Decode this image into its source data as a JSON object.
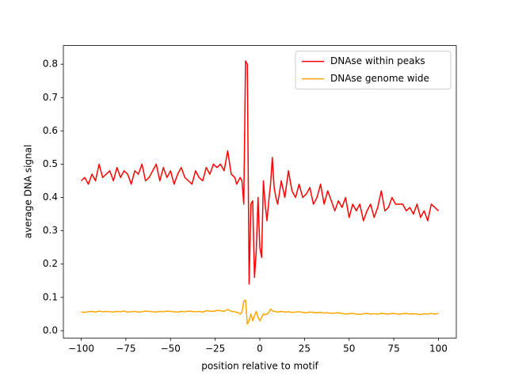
{
  "chart_data": {
    "type": "line",
    "xlabel": "position relative to motif",
    "ylabel": "average DNA signal",
    "x": [
      -100,
      -98,
      -96,
      -94,
      -92,
      -90,
      -88,
      -86,
      -84,
      -82,
      -80,
      -78,
      -76,
      -74,
      -72,
      -70,
      -68,
      -66,
      -64,
      -62,
      -60,
      -58,
      -56,
      -54,
      -52,
      -50,
      -48,
      -46,
      -44,
      -42,
      -40,
      -38,
      -36,
      -34,
      -32,
      -30,
      -28,
      -26,
      -24,
      -22,
      -20,
      -18,
      -16,
      -14,
      -13,
      -12,
      -11,
      -10,
      -9,
      -8,
      -7,
      -6,
      -5,
      -4,
      -3,
      -2,
      -1,
      0,
      1,
      2,
      3,
      4,
      5,
      6,
      7,
      8,
      9,
      10,
      12,
      14,
      16,
      18,
      20,
      22,
      24,
      26,
      28,
      30,
      32,
      34,
      36,
      38,
      40,
      42,
      44,
      46,
      48,
      50,
      52,
      54,
      56,
      58,
      60,
      62,
      64,
      66,
      68,
      70,
      72,
      74,
      76,
      78,
      80,
      82,
      84,
      86,
      88,
      90,
      92,
      94,
      96,
      98,
      100
    ],
    "series": [
      {
        "name": "DNAse within peaks",
        "color": "#ff0000",
        "values": [
          0.45,
          0.46,
          0.44,
          0.47,
          0.45,
          0.5,
          0.46,
          0.47,
          0.48,
          0.45,
          0.49,
          0.46,
          0.48,
          0.47,
          0.44,
          0.48,
          0.47,
          0.5,
          0.45,
          0.46,
          0.48,
          0.5,
          0.45,
          0.49,
          0.46,
          0.48,
          0.44,
          0.47,
          0.49,
          0.46,
          0.45,
          0.44,
          0.48,
          0.46,
          0.45,
          0.49,
          0.47,
          0.5,
          0.49,
          0.5,
          0.48,
          0.54,
          0.47,
          0.46,
          0.44,
          0.45,
          0.46,
          0.45,
          0.38,
          0.81,
          0.8,
          0.14,
          0.38,
          0.39,
          0.16,
          0.24,
          0.4,
          0.25,
          0.22,
          0.45,
          0.38,
          0.33,
          0.39,
          0.44,
          0.52,
          0.43,
          0.4,
          0.38,
          0.45,
          0.4,
          0.48,
          0.42,
          0.4,
          0.44,
          0.4,
          0.41,
          0.43,
          0.38,
          0.4,
          0.44,
          0.38,
          0.42,
          0.39,
          0.36,
          0.39,
          0.37,
          0.4,
          0.34,
          0.38,
          0.36,
          0.38,
          0.33,
          0.36,
          0.38,
          0.34,
          0.37,
          0.42,
          0.36,
          0.37,
          0.4,
          0.38,
          0.38,
          0.38,
          0.36,
          0.37,
          0.35,
          0.38,
          0.34,
          0.36,
          0.33,
          0.38,
          0.37,
          0.36
        ]
      },
      {
        "name": "DNAse genome wide",
        "color": "#ffa500",
        "values": [
          0.056,
          0.055,
          0.057,
          0.058,
          0.056,
          0.059,
          0.057,
          0.058,
          0.057,
          0.056,
          0.058,
          0.057,
          0.059,
          0.056,
          0.057,
          0.058,
          0.056,
          0.057,
          0.059,
          0.058,
          0.057,
          0.056,
          0.058,
          0.057,
          0.059,
          0.058,
          0.057,
          0.056,
          0.058,
          0.057,
          0.059,
          0.058,
          0.057,
          0.058,
          0.056,
          0.06,
          0.059,
          0.058,
          0.061,
          0.06,
          0.058,
          0.064,
          0.058,
          0.057,
          0.055,
          0.054,
          0.05,
          0.056,
          0.088,
          0.092,
          0.02,
          0.03,
          0.05,
          0.03,
          0.045,
          0.058,
          0.04,
          0.03,
          0.04,
          0.05,
          0.048,
          0.05,
          0.055,
          0.065,
          0.06,
          0.058,
          0.057,
          0.056,
          0.058,
          0.056,
          0.057,
          0.055,
          0.056,
          0.057,
          0.055,
          0.054,
          0.056,
          0.055,
          0.054,
          0.055,
          0.053,
          0.054,
          0.052,
          0.053,
          0.054,
          0.052,
          0.05,
          0.051,
          0.052,
          0.05,
          0.049,
          0.051,
          0.052,
          0.05,
          0.051,
          0.05,
          0.052,
          0.051,
          0.05,
          0.052,
          0.051,
          0.05,
          0.051,
          0.052,
          0.05,
          0.051,
          0.05,
          0.049,
          0.051,
          0.05,
          0.052,
          0.05,
          0.052
        ]
      }
    ],
    "xlim": [
      -110,
      110
    ],
    "xticks": [
      {
        "value": -100,
        "label": "−100"
      },
      {
        "value": -75,
        "label": "−75"
      },
      {
        "value": -50,
        "label": "−50"
      },
      {
        "value": -25,
        "label": "−25"
      },
      0,
      25,
      50,
      75,
      100
    ],
    "ylim": [
      -0.022,
      0.856
    ],
    "yticks": [
      {
        "value": 0,
        "label": "0.0"
      },
      0.1,
      0.2,
      0.3,
      0.4,
      0.5,
      0.6,
      0.7,
      0.8
    ],
    "grid": false,
    "legend": "upper right"
  }
}
